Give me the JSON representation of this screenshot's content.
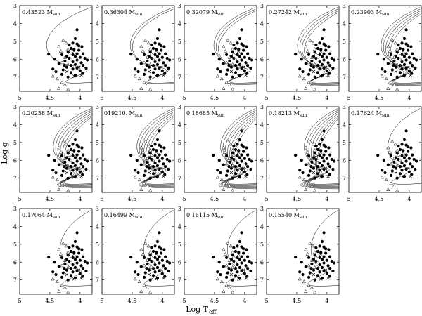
{
  "chart_data": {
    "type": "scatter",
    "figure_xlabel": "Log T",
    "figure_xlabel_subscript": "eff",
    "figure_ylabel": "Log g",
    "mass_unit": "M",
    "mass_unit_subscript": "sun",
    "xlim": [
      5.0,
      3.8
    ],
    "ylim": [
      3.0,
      7.8
    ],
    "x_ticks": [
      5,
      4.5,
      4
    ],
    "x_tick_labels": [
      "5",
      "4.5",
      "4"
    ],
    "y_ticks": [
      3,
      4,
      5,
      6,
      7
    ],
    "y_tick_labels": [
      "3",
      "4",
      "5",
      "6",
      "7"
    ],
    "observed_stars": {
      "filled_circles": [
        [
          4.05,
          4.35
        ],
        [
          4.08,
          4.85
        ],
        [
          4.12,
          5.1
        ],
        [
          4.05,
          5.15
        ],
        [
          3.97,
          5.3
        ],
        [
          4.15,
          5.4
        ],
        [
          4.1,
          5.45
        ],
        [
          4.02,
          5.5
        ],
        [
          4.2,
          5.6
        ],
        [
          4.05,
          5.7
        ],
        [
          3.95,
          5.7
        ],
        [
          4.12,
          5.75
        ],
        [
          4.52,
          5.72
        ],
        [
          4.3,
          5.75
        ],
        [
          4.08,
          5.85
        ],
        [
          4.0,
          5.9
        ],
        [
          4.18,
          5.95
        ],
        [
          3.92,
          5.95
        ],
        [
          4.42,
          6.0
        ],
        [
          4.05,
          6.05
        ],
        [
          4.25,
          6.1
        ],
        [
          4.12,
          6.15
        ],
        [
          3.98,
          6.2
        ],
        [
          4.35,
          6.25
        ],
        [
          4.08,
          6.3
        ],
        [
          4.15,
          6.35
        ],
        [
          3.95,
          6.35
        ],
        [
          4.22,
          6.45
        ],
        [
          4.05,
          6.5
        ],
        [
          3.9,
          6.5
        ],
        [
          4.12,
          6.55
        ],
        [
          4.28,
          6.6
        ],
        [
          4.0,
          6.65
        ],
        [
          4.4,
          6.7
        ],
        [
          4.15,
          6.75
        ],
        [
          3.96,
          6.8
        ],
        [
          4.3,
          6.85
        ],
        [
          4.08,
          6.9
        ],
        [
          4.2,
          7.0
        ],
        [
          4.45,
          6.55
        ],
        [
          4.02,
          5.25
        ],
        [
          4.18,
          5.2
        ],
        [
          4.26,
          6.35
        ],
        [
          3.88,
          6.05
        ],
        [
          4.22,
          5.85
        ]
      ],
      "open_triangles": [
        [
          4.28,
          4.95
        ],
        [
          4.23,
          5.1
        ],
        [
          4.35,
          5.3
        ],
        [
          4.2,
          5.45
        ],
        [
          4.32,
          5.55
        ],
        [
          4.18,
          5.7
        ],
        [
          4.25,
          5.9
        ],
        [
          4.15,
          6.0
        ],
        [
          4.3,
          6.2
        ],
        [
          4.2,
          6.3
        ],
        [
          4.45,
          6.95
        ],
        [
          4.38,
          7.1
        ],
        [
          4.3,
          7.3
        ],
        [
          4.25,
          7.45
        ],
        [
          4.35,
          7.65
        ],
        [
          4.2,
          7.7
        ]
      ],
      "crosses": [
        [
          4.1,
          5.55
        ],
        [
          4.02,
          6.45
        ],
        [
          3.98,
          6.9
        ],
        [
          4.1,
          6.95
        ],
        [
          4.22,
          6.7
        ]
      ]
    },
    "panels": [
      {
        "mass": "0.43523",
        "n_tracks": 1
      },
      {
        "mass": "0.36304",
        "n_tracks": 2
      },
      {
        "mass": "0.32079",
        "n_tracks": 3
      },
      {
        "mass": "0.27242",
        "n_tracks": 4
      },
      {
        "mass": "0.23903",
        "n_tracks": 5
      },
      {
        "mass": "0.20258",
        "n_tracks": 6
      },
      {
        "mass": "019210.",
        "n_tracks": 6
      },
      {
        "mass": "0.18685",
        "n_tracks": 7
      },
      {
        "mass": "0.18213",
        "n_tracks": 7
      },
      {
        "mass": "0.17624",
        "n_tracks": 1
      },
      {
        "mass": "0.17064",
        "n_tracks": 1
      },
      {
        "mass": "0.16499",
        "n_tracks": 1
      },
      {
        "mass": "0.16115",
        "n_tracks": 1
      },
      {
        "mass": "0.15540",
        "n_tracks": 1
      }
    ]
  }
}
